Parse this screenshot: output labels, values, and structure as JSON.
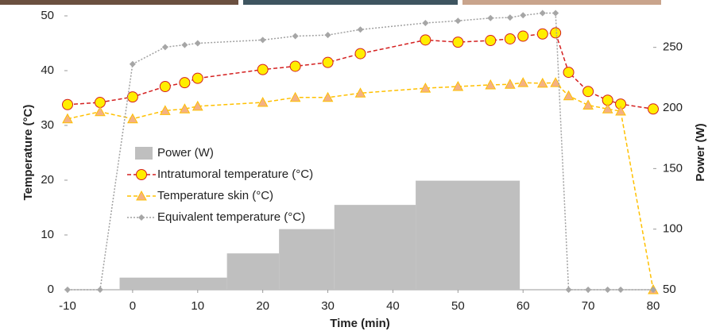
{
  "chart_data": {
    "type": "combo",
    "x_title": "Time (min)",
    "y_title": "Temperature (°C)",
    "y2_title": "Power (W)",
    "xlim": [
      -10,
      80
    ],
    "xticks": [
      -10,
      0,
      10,
      20,
      30,
      40,
      50,
      60,
      70,
      80
    ],
    "ylim": [
      0,
      50
    ],
    "yticks": [
      0,
      10,
      20,
      30,
      40,
      50
    ],
    "y2lim": [
      50,
      276
    ],
    "y2ticks": [
      50,
      100,
      150,
      200,
      250
    ],
    "grid": false,
    "legend": "center-left",
    "bars": {
      "name": "Power (W)",
      "color": "#bfbfbf",
      "axis": "y2",
      "bins": [
        -2,
        14.5,
        22.5,
        31,
        43.5,
        59.5
      ],
      "values": [
        60,
        80,
        100,
        120,
        140
      ]
    },
    "x": [
      -10,
      -5,
      0,
      5,
      8,
      10,
      20,
      25,
      30,
      35,
      45,
      50,
      55,
      58,
      60,
      63,
      65,
      67,
      70,
      73,
      75,
      80
    ],
    "series": [
      {
        "name": "Intratumoral temperature (°C)",
        "color": "#d42020",
        "marker": "circle",
        "marker_color": "#ffee00",
        "values": [
          33.8,
          34.2,
          35.2,
          37.1,
          37.8,
          38.6,
          40.2,
          40.8,
          41.5,
          43.1,
          45.6,
          45.2,
          45.5,
          45.8,
          46.3,
          46.7,
          46.9,
          39.7,
          36.2,
          34.6,
          33.9,
          33.0
        ]
      },
      {
        "name": "Temperature skin (°C)",
        "color": "#ffc000",
        "marker": "triangle",
        "marker_color": "#f4b183",
        "values": [
          31.2,
          32.5,
          31.2,
          32.7,
          33.0,
          33.5,
          34.2,
          35.1,
          35.1,
          35.9,
          36.8,
          37.1,
          37.4,
          37.5,
          37.8,
          37.7,
          37.8,
          35.4,
          33.7,
          33.0,
          32.6,
          0
        ]
      },
      {
        "name": "Equivalent temperature (°C)",
        "color": "#a0a0a0",
        "marker": "diamond",
        "marker_color": "#a6a6a6",
        "values": [
          0,
          0,
          41.2,
          44.3,
          44.7,
          45.0,
          45.6,
          46.3,
          46.5,
          47.5,
          48.7,
          49.1,
          49.6,
          49.7,
          50.1,
          50.5,
          50.5,
          0,
          0,
          0,
          0,
          0
        ]
      }
    ]
  }
}
